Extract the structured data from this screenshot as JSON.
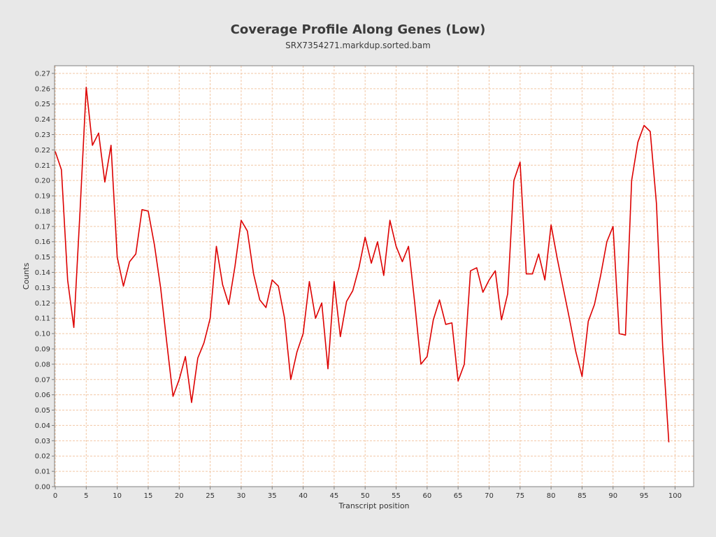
{
  "chart_data": {
    "type": "line",
    "title": "Coverage Profile Along Genes (Low)",
    "subtitle": "SRX7354271.markdup.sorted.bam",
    "xlabel": "Transcript position",
    "ylabel": "Counts",
    "xlim": [
      0,
      103
    ],
    "ylim": [
      0,
      0.275
    ],
    "x_ticks": [
      0,
      5,
      10,
      15,
      20,
      25,
      30,
      35,
      40,
      45,
      50,
      55,
      60,
      65,
      70,
      75,
      80,
      85,
      90,
      95,
      100
    ],
    "y_ticks": [
      0.0,
      0.01,
      0.02,
      0.03,
      0.04,
      0.05,
      0.06,
      0.07,
      0.08,
      0.09,
      0.1,
      0.11,
      0.12,
      0.13,
      0.14,
      0.15,
      0.16,
      0.17,
      0.18,
      0.19,
      0.2,
      0.21,
      0.22,
      0.23,
      0.24,
      0.25,
      0.26,
      0.27
    ],
    "grid": true,
    "legend": "none",
    "series": [
      {
        "color": "#dd0000",
        "x": [
          0,
          1,
          2,
          3,
          4,
          5,
          6,
          7,
          8,
          9,
          10,
          11,
          12,
          13,
          14,
          15,
          16,
          17,
          18,
          19,
          20,
          21,
          22,
          23,
          24,
          25,
          26,
          27,
          28,
          29,
          30,
          31,
          32,
          33,
          34,
          35,
          36,
          37,
          38,
          39,
          40,
          41,
          42,
          43,
          44,
          45,
          46,
          47,
          48,
          49,
          50,
          51,
          52,
          53,
          54,
          55,
          56,
          57,
          58,
          59,
          60,
          61,
          62,
          63,
          64,
          65,
          66,
          67,
          68,
          69,
          70,
          71,
          72,
          73,
          74,
          75,
          76,
          77,
          78,
          79,
          80,
          81,
          82,
          83,
          84,
          85,
          86,
          87,
          88,
          89,
          90,
          91,
          92,
          93,
          94,
          95,
          96,
          97,
          98,
          99
        ],
        "values": [
          0.219,
          0.207,
          0.135,
          0.104,
          0.18,
          0.261,
          0.223,
          0.231,
          0.199,
          0.223,
          0.15,
          0.131,
          0.147,
          0.152,
          0.181,
          0.18,
          0.158,
          0.13,
          0.094,
          0.059,
          0.07,
          0.085,
          0.055,
          0.084,
          0.094,
          0.11,
          0.157,
          0.132,
          0.119,
          0.144,
          0.174,
          0.167,
          0.139,
          0.122,
          0.117,
          0.135,
          0.131,
          0.11,
          0.07,
          0.088,
          0.1,
          0.134,
          0.11,
          0.12,
          0.077,
          0.134,
          0.098,
          0.121,
          0.128,
          0.143,
          0.163,
          0.146,
          0.16,
          0.138,
          0.174,
          0.157,
          0.147,
          0.157,
          0.12,
          0.08,
          0.085,
          0.109,
          0.122,
          0.106,
          0.107,
          0.069,
          0.08,
          0.141,
          0.143,
          0.127,
          0.135,
          0.141,
          0.109,
          0.126,
          0.2,
          0.212,
          0.139,
          0.139,
          0.152,
          0.135,
          0.171,
          0.149,
          0.129,
          0.109,
          0.088,
          0.072,
          0.108,
          0.119,
          0.138,
          0.16,
          0.17,
          0.1,
          0.099,
          0.2,
          0.225,
          0.236,
          0.232,
          0.185,
          0.092,
          0.029
        ]
      }
    ]
  }
}
